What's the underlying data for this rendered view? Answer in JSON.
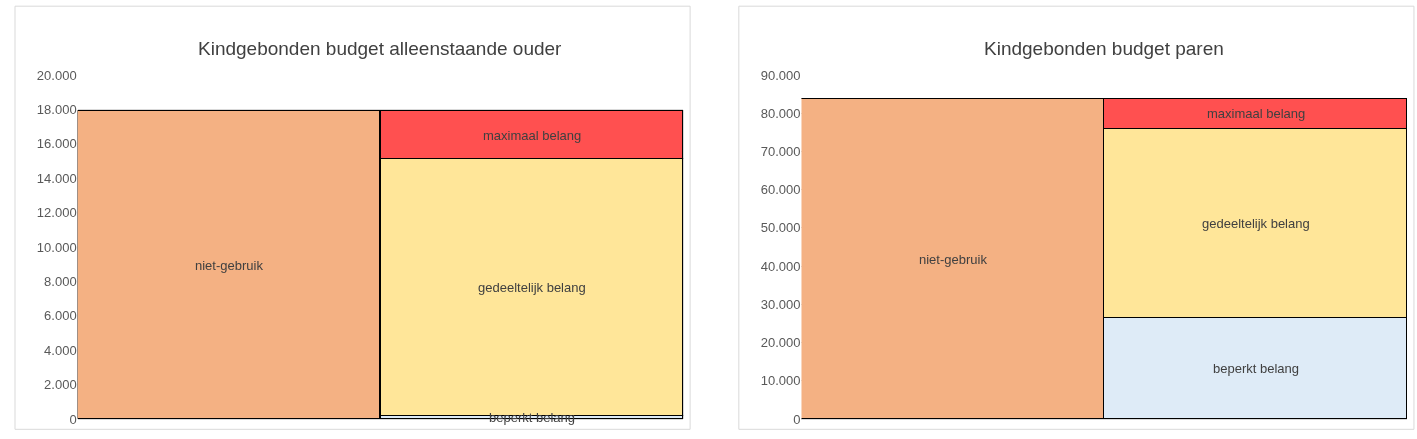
{
  "chart_data": [
    {
      "type": "bar",
      "title": "Kindgebonden budget alleenstaande ouder",
      "categories": [
        null,
        null
      ],
      "stacked": true,
      "grid": "y",
      "ylim": [
        0,
        20000
      ],
      "yticks": [
        0,
        {
          "value": 2000,
          "label": "2.000"
        },
        {
          "value": 4000,
          "label": "4.000"
        },
        {
          "value": 6000,
          "label": "6.000"
        },
        {
          "value": 8000,
          "label": "8.000"
        },
        {
          "value": 10000,
          "label": "10.000"
        },
        {
          "value": 12000,
          "label": "12.000"
        },
        {
          "value": 14000,
          "label": "14.000"
        },
        {
          "value": 16000,
          "label": "16.000"
        },
        {
          "value": 18000,
          "label": "18.000"
        },
        {
          "value": 20000,
          "label": "20.000"
        }
      ],
      "series": [
        {
          "name": "niet-gebruik",
          "color": "#f4b183",
          "values": [
            17900,
            null
          ]
        },
        {
          "name": "beperkt belang",
          "color": "#deebf7",
          "values": [
            null,
            200
          ]
        },
        {
          "name": "gedeeltelijk belang",
          "color": "#ffe699",
          "values": [
            null,
            14900
          ]
        },
        {
          "name": "maximaal belang",
          "color": "#ff5050",
          "values": [
            null,
            2800
          ]
        }
      ]
    },
    {
      "type": "bar",
      "title": "Kindgebonden budget paren",
      "categories": [
        null,
        null
      ],
      "stacked": true,
      "grid": "y",
      "ylim": [
        0,
        90000
      ],
      "yticks": [
        0,
        {
          "value": 10000,
          "label": "10.000"
        },
        {
          "value": 20000,
          "label": "20.000"
        },
        {
          "value": 30000,
          "label": "30.000"
        },
        {
          "value": 40000,
          "label": "40.000"
        },
        {
          "value": 50000,
          "label": "50.000"
        },
        {
          "value": 60000,
          "label": "60.000"
        },
        {
          "value": 70000,
          "label": "70.000"
        },
        {
          "value": 80000,
          "label": "80.000"
        },
        {
          "value": 90000,
          "label": "90.000"
        }
      ],
      "series": [
        {
          "name": "niet-gebruik",
          "color": "#f4b183",
          "values": [
            83700,
            null
          ]
        },
        {
          "name": "beperkt belang",
          "color": "#deebf7",
          "values": [
            null,
            26300
          ]
        },
        {
          "name": "gedeeltelijk belang",
          "color": "#ffe699",
          "values": [
            null,
            49700
          ]
        },
        {
          "name": "maximaal belang",
          "color": "#ff5050",
          "values": [
            null,
            7700
          ]
        }
      ]
    }
  ]
}
